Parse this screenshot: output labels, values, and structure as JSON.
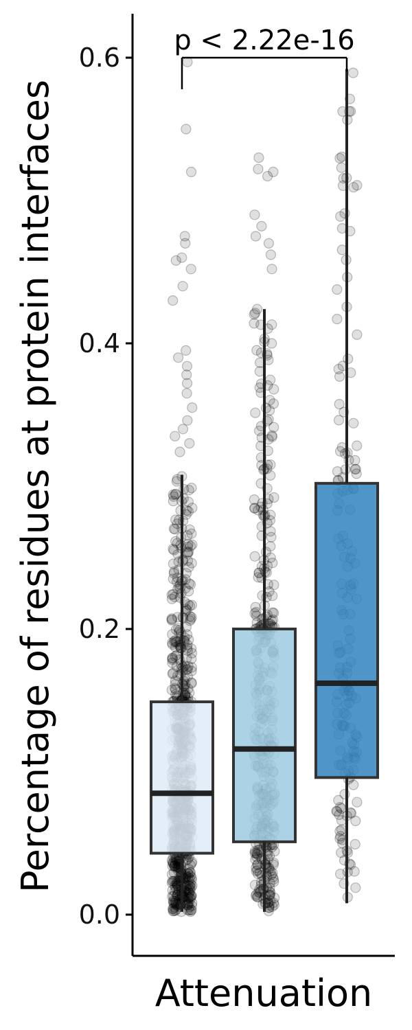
{
  "chart_data": {
    "type": "box",
    "ylabel": "Percentage of residues at protein interfaces",
    "xlabel": "Attenuation",
    "ylim": [
      -0.03,
      0.63
    ],
    "yticks": [
      0.0,
      0.2,
      0.4,
      0.6
    ],
    "ytick_labels": [
      "0.0",
      "0.2",
      "0.4",
      "0.6"
    ],
    "annotation": "p < 2.22e-16",
    "comparison": [
      "group1",
      "group3"
    ],
    "groups": [
      {
        "color": "#deebf7",
        "whisker_low": 0.002,
        "q1": 0.043,
        "median": 0.085,
        "q3": 0.149,
        "whisker_high": 0.308,
        "outliers": [
          0.324,
          0.33,
          0.335,
          0.34,
          0.346,
          0.355,
          0.365,
          0.372,
          0.378,
          0.384,
          0.39,
          0.395,
          0.43,
          0.44,
          0.452,
          0.458,
          0.46,
          0.47,
          0.475,
          0.52,
          0.55,
          0.597
        ]
      },
      {
        "color": "#9ecae1",
        "whisker_low": 0.002,
        "q1": 0.051,
        "median": 0.116,
        "q3": 0.2,
        "whisker_high": 0.424,
        "outliers": [
          0.452,
          0.462,
          0.47,
          0.475,
          0.482,
          0.49,
          0.517,
          0.52,
          0.522,
          0.53
        ]
      },
      {
        "color": "#3182bd",
        "whisker_low": 0.008,
        "q1": 0.096,
        "median": 0.162,
        "q3": 0.302,
        "whisker_high": 0.592,
        "n_points": 160
      }
    ]
  }
}
